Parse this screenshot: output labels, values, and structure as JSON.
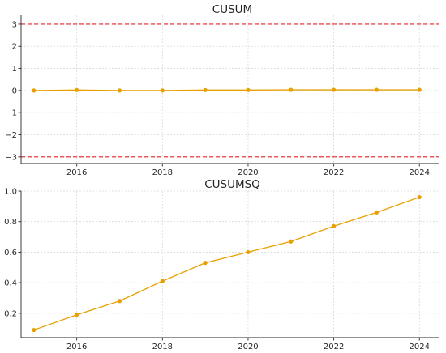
{
  "colors": {
    "series": "#E8A000",
    "control_limit": "#E8202A",
    "grid": "#D9D9D9",
    "axis": "#262626"
  },
  "chart_data": [
    {
      "type": "line",
      "title": "CUSUM",
      "xlabel": "",
      "ylabel": "",
      "x": [
        2015,
        2016,
        2017,
        2018,
        2019,
        2020,
        2021,
        2022,
        2023,
        2024
      ],
      "series": [
        {
          "values": [
            0.0,
            0.02,
            0.0,
            0.0,
            0.02,
            0.02,
            0.03,
            0.03,
            0.03,
            0.03
          ]
        }
      ],
      "reference_lines": [
        3,
        -3
      ],
      "reference_style": "dashed",
      "xlim": [
        2014.7,
        2024.45
      ],
      "ylim": [
        -3.3,
        3.4
      ],
      "xticks": [
        2016,
        2018,
        2020,
        2022,
        2024
      ],
      "yticks": [
        3,
        2,
        1,
        0,
        -1,
        -2,
        -3
      ],
      "xtick_labels": [
        "2016",
        "2018",
        "2020",
        "2022",
        "2024"
      ],
      "ytick_labels": [
        "3",
        "2",
        "1",
        "0",
        "−1",
        "−2",
        "−3"
      ],
      "grid": true
    },
    {
      "type": "line",
      "title": "CUSUMSQ",
      "xlabel": "",
      "ylabel": "",
      "x": [
        2015,
        2016,
        2017,
        2018,
        2019,
        2020,
        2021,
        2022,
        2023,
        2024
      ],
      "series": [
        {
          "values": [
            0.09,
            0.19,
            0.28,
            0.41,
            0.53,
            0.6,
            0.67,
            0.77,
            0.86,
            0.96
          ]
        }
      ],
      "xlim": [
        2014.7,
        2024.45
      ],
      "ylim": [
        0.04,
        1.0
      ],
      "xticks": [
        2016,
        2018,
        2020,
        2022,
        2024
      ],
      "yticks": [
        1.0,
        0.8,
        0.6,
        0.4,
        0.2
      ],
      "xtick_labels": [
        "2016",
        "2018",
        "2020",
        "2022",
        "2024"
      ],
      "ytick_labels": [
        "1.0",
        "0.8",
        "0.6",
        "0.4",
        "0.2"
      ],
      "grid": true
    }
  ]
}
